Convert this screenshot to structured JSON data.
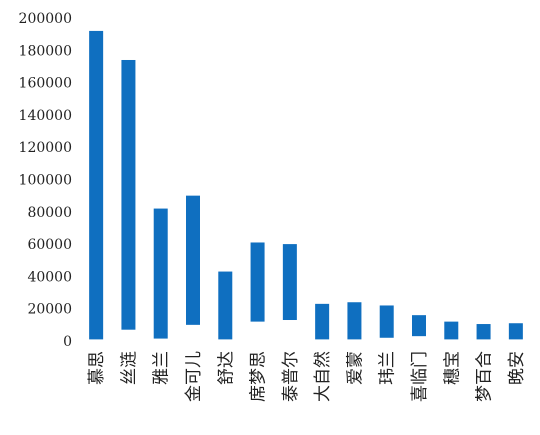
{
  "chart_data": {
    "type": "bar",
    "title": "",
    "xlabel": "",
    "ylabel": "",
    "ylim": [
      0,
      200000
    ],
    "yticks": [
      0,
      20000,
      40000,
      60000,
      80000,
      100000,
      120000,
      140000,
      160000,
      180000,
      200000
    ],
    "grid": false,
    "legend": "none",
    "color": "#0f6fc0",
    "categories": [
      "慕思",
      "丝涟",
      "雅兰",
      "金可儿",
      "舒达",
      "席梦思",
      "泰普尔",
      "大自然",
      "爱蒙",
      "玮兰",
      "喜临门",
      "穗宝",
      "梦百合",
      "晚安"
    ],
    "ranges": [
      [
        1000,
        192000
      ],
      [
        7000,
        174000
      ],
      [
        1500,
        82000
      ],
      [
        10000,
        90000
      ],
      [
        1000,
        43000
      ],
      [
        12000,
        61000
      ],
      [
        13000,
        60000
      ],
      [
        1000,
        23000
      ],
      [
        1000,
        24000
      ],
      [
        2000,
        22000
      ],
      [
        3000,
        16000
      ],
      [
        1000,
        12000
      ],
      [
        1000,
        10500
      ],
      [
        1000,
        11000
      ]
    ]
  }
}
